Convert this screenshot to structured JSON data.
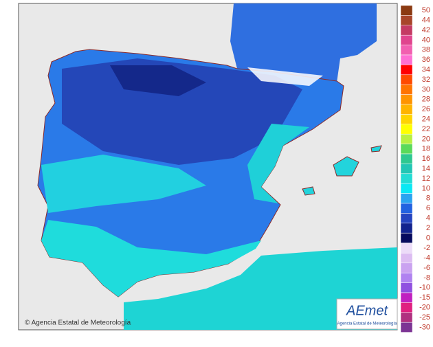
{
  "legend": {
    "items": [
      {
        "label": "50",
        "color": "#8b3a12"
      },
      {
        "label": "44",
        "color": "#a8452a"
      },
      {
        "label": "42",
        "color": "#c43a64"
      },
      {
        "label": "40",
        "color": "#e0448e"
      },
      {
        "label": "38",
        "color": "#f25fb0"
      },
      {
        "label": "36",
        "color": "#ff6ed2"
      },
      {
        "label": "34",
        "color": "#ff0000"
      },
      {
        "label": "32",
        "color": "#ff4a00"
      },
      {
        "label": "30",
        "color": "#ff7400"
      },
      {
        "label": "28",
        "color": "#ff9400"
      },
      {
        "label": "26",
        "color": "#ffb400"
      },
      {
        "label": "24",
        "color": "#ffd400"
      },
      {
        "label": "22",
        "color": "#ffff00"
      },
      {
        "label": "20",
        "color": "#b8f040"
      },
      {
        "label": "18",
        "color": "#5ada5a"
      },
      {
        "label": "16",
        "color": "#2ec890"
      },
      {
        "label": "14",
        "color": "#22c6b4"
      },
      {
        "label": "12",
        "color": "#22dcd4"
      },
      {
        "label": "10",
        "color": "#0ae8f4"
      },
      {
        "label": "8",
        "color": "#2aa4f0"
      },
      {
        "label": "6",
        "color": "#2262e0"
      },
      {
        "label": "4",
        "color": "#2444c0"
      },
      {
        "label": "2",
        "color": "#12238e"
      },
      {
        "label": "0",
        "color": "#060a5e"
      },
      {
        "label": "-2",
        "color": "#ecdcf8"
      },
      {
        "label": "-4",
        "color": "#dcbcf2"
      },
      {
        "label": "-6",
        "color": "#caa2f0"
      },
      {
        "label": "-8",
        "color": "#b082f0"
      },
      {
        "label": "-10",
        "color": "#9050e0"
      },
      {
        "label": "-15",
        "color": "#c020c0"
      },
      {
        "label": "-20",
        "color": "#e02080"
      },
      {
        "label": "-25",
        "color": "#b03080"
      },
      {
        "label": "-30",
        "color": "#7c3494"
      }
    ]
  },
  "credit": "© Agencia Estatal de Meteorología",
  "logo": {
    "brand": "AEmet",
    "subtitle": "Agencia Estatal de Meteorología"
  }
}
